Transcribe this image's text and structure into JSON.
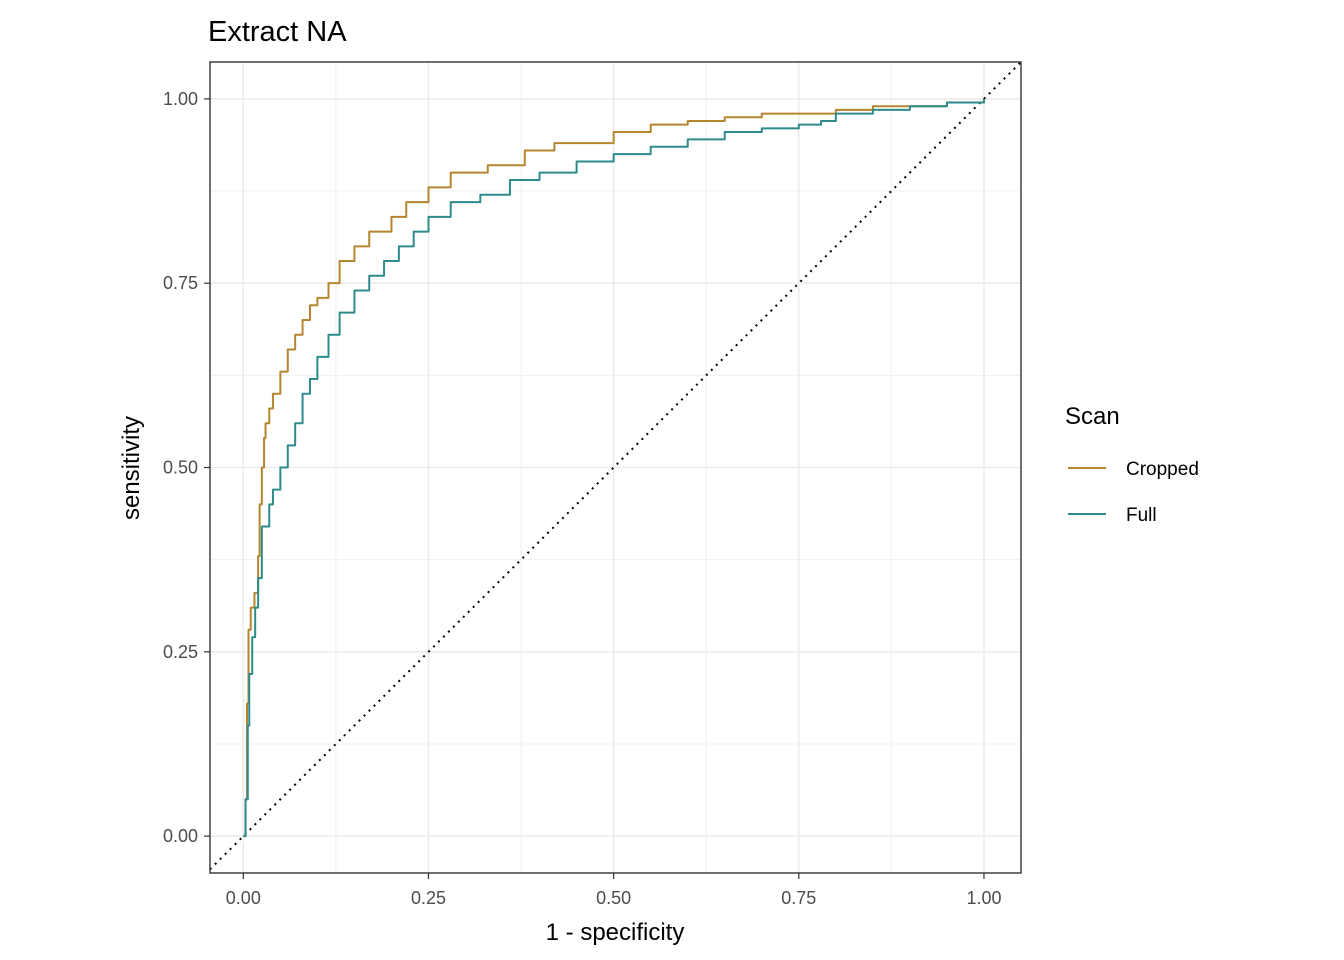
{
  "chart_data": {
    "type": "line",
    "title": "Extract NA",
    "xlabel": "1 - specificity",
    "ylabel": "sensitivity",
    "xlim": [
      -0.045,
      1.05
    ],
    "ylim": [
      -0.05,
      1.05
    ],
    "x_ticks": [
      "0.00",
      "0.25",
      "0.50",
      "0.75",
      "1.00"
    ],
    "y_ticks": [
      "0.00",
      "0.25",
      "0.50",
      "0.75",
      "1.00"
    ],
    "grid": true,
    "legend": {
      "title": "Scan",
      "position": "right"
    },
    "reference_line": {
      "style": "dotted",
      "from": [
        -0.045,
        -0.045
      ],
      "to": [
        1.05,
        1.05
      ]
    },
    "series": [
      {
        "name": "Cropped",
        "color": "#B5852F",
        "points": [
          [
            0,
            0
          ],
          [
            0.003,
            0.05
          ],
          [
            0.005,
            0.18
          ],
          [
            0.007,
            0.28
          ],
          [
            0.01,
            0.31
          ],
          [
            0.015,
            0.33
          ],
          [
            0.02,
            0.38
          ],
          [
            0.022,
            0.45
          ],
          [
            0.025,
            0.5
          ],
          [
            0.028,
            0.54
          ],
          [
            0.03,
            0.56
          ],
          [
            0.035,
            0.58
          ],
          [
            0.04,
            0.6
          ],
          [
            0.05,
            0.63
          ],
          [
            0.06,
            0.66
          ],
          [
            0.07,
            0.68
          ],
          [
            0.08,
            0.7
          ],
          [
            0.09,
            0.72
          ],
          [
            0.1,
            0.73
          ],
          [
            0.115,
            0.75
          ],
          [
            0.13,
            0.78
          ],
          [
            0.15,
            0.8
          ],
          [
            0.17,
            0.82
          ],
          [
            0.2,
            0.84
          ],
          [
            0.22,
            0.86
          ],
          [
            0.25,
            0.88
          ],
          [
            0.28,
            0.9
          ],
          [
            0.33,
            0.91
          ],
          [
            0.38,
            0.93
          ],
          [
            0.42,
            0.94
          ],
          [
            0.5,
            0.955
          ],
          [
            0.55,
            0.965
          ],
          [
            0.6,
            0.97
          ],
          [
            0.65,
            0.975
          ],
          [
            0.7,
            0.98
          ],
          [
            0.75,
            0.98
          ],
          [
            0.8,
            0.985
          ],
          [
            0.85,
            0.99
          ],
          [
            0.9,
            0.99
          ],
          [
            0.95,
            0.995
          ],
          [
            1.0,
            1.0
          ]
        ]
      },
      {
        "name": "Full",
        "color": "#2E8B8B",
        "points": [
          [
            0,
            0
          ],
          [
            0.003,
            0.05
          ],
          [
            0.006,
            0.15
          ],
          [
            0.008,
            0.22
          ],
          [
            0.012,
            0.27
          ],
          [
            0.016,
            0.31
          ],
          [
            0.02,
            0.35
          ],
          [
            0.025,
            0.42
          ],
          [
            0.035,
            0.45
          ],
          [
            0.04,
            0.47
          ],
          [
            0.05,
            0.5
          ],
          [
            0.06,
            0.53
          ],
          [
            0.07,
            0.56
          ],
          [
            0.08,
            0.6
          ],
          [
            0.09,
            0.62
          ],
          [
            0.1,
            0.65
          ],
          [
            0.115,
            0.68
          ],
          [
            0.13,
            0.71
          ],
          [
            0.15,
            0.74
          ],
          [
            0.17,
            0.76
          ],
          [
            0.19,
            0.78
          ],
          [
            0.21,
            0.8
          ],
          [
            0.23,
            0.82
          ],
          [
            0.25,
            0.84
          ],
          [
            0.28,
            0.86
          ],
          [
            0.32,
            0.87
          ],
          [
            0.36,
            0.89
          ],
          [
            0.4,
            0.9
          ],
          [
            0.45,
            0.915
          ],
          [
            0.5,
            0.925
          ],
          [
            0.55,
            0.935
          ],
          [
            0.6,
            0.945
          ],
          [
            0.65,
            0.955
          ],
          [
            0.7,
            0.96
          ],
          [
            0.75,
            0.965
          ],
          [
            0.78,
            0.97
          ],
          [
            0.8,
            0.98
          ],
          [
            0.85,
            0.985
          ],
          [
            0.9,
            0.99
          ],
          [
            0.95,
            0.995
          ],
          [
            1.0,
            1.0
          ]
        ]
      }
    ]
  }
}
